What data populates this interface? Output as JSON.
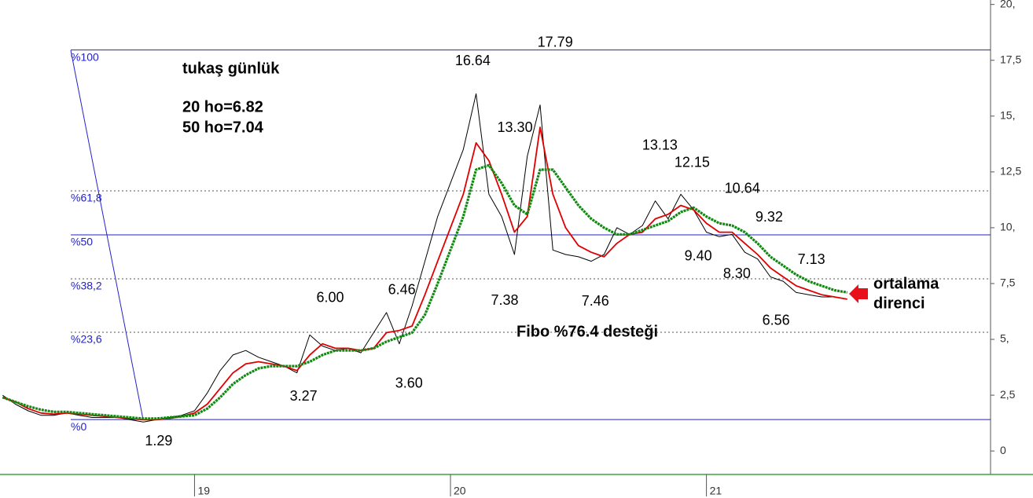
{
  "chart_data": {
    "type": "line",
    "title": "tukaş günlük",
    "subtitle": [
      "20 ho=6.82",
      "50 ho=7.04"
    ],
    "annotations": {
      "support": "Fibo %76.4 desteği",
      "resistance": [
        "ortalama",
        "direnci"
      ]
    },
    "x": [
      18.25,
      18.3,
      18.35,
      18.4,
      18.45,
      18.5,
      18.55,
      18.6,
      18.65,
      18.7,
      18.75,
      18.8,
      18.85,
      18.9,
      18.95,
      19.0,
      19.05,
      19.1,
      19.15,
      19.2,
      19.25,
      19.3,
      19.35,
      19.4,
      19.45,
      19.5,
      19.55,
      19.6,
      19.65,
      19.7,
      19.75,
      19.8,
      19.85,
      19.9,
      19.95,
      20.0,
      20.05,
      20.1,
      20.15,
      20.2,
      20.25,
      20.3,
      20.35,
      20.4,
      20.45,
      20.5,
      20.55,
      20.6,
      20.65,
      20.7,
      20.75,
      20.8,
      20.85,
      20.9,
      20.95,
      21.0,
      21.05,
      21.1,
      21.15,
      21.2,
      21.25,
      21.3,
      21.35,
      21.4,
      21.45,
      21.5,
      21.55
    ],
    "series": [
      {
        "color": "#000000",
        "values": [
          2.5,
          2.1,
          1.8,
          1.6,
          1.6,
          1.7,
          1.6,
          1.5,
          1.5,
          1.5,
          1.4,
          1.3,
          1.4,
          1.5,
          1.6,
          1.8,
          2.6,
          3.6,
          4.3,
          4.5,
          4.2,
          4.0,
          3.8,
          3.5,
          5.2,
          4.7,
          4.5,
          4.6,
          4.4,
          5.3,
          6.2,
          4.8,
          6.5,
          8.5,
          10.5,
          12.0,
          13.5,
          16.0,
          11.5,
          10.5,
          8.8,
          13.2,
          15.5,
          9.0,
          8.8,
          8.7,
          8.5,
          8.8,
          10.0,
          9.7,
          10.1,
          11.2,
          10.4,
          11.5,
          10.8,
          9.8,
          9.6,
          9.7,
          8.9,
          8.6,
          7.8,
          7.6,
          7.1,
          7.0,
          6.9,
          6.9,
          6.8
        ]
      },
      {
        "color": "#e00000",
        "values": [
          2.4,
          2.2,
          1.9,
          1.7,
          1.65,
          1.7,
          1.65,
          1.6,
          1.55,
          1.5,
          1.45,
          1.4,
          1.4,
          1.45,
          1.55,
          1.7,
          2.1,
          2.8,
          3.5,
          3.9,
          4.0,
          3.9,
          3.8,
          3.6,
          4.3,
          4.8,
          4.6,
          4.6,
          4.5,
          4.6,
          5.3,
          5.4,
          5.6,
          7.0,
          8.5,
          10.0,
          11.5,
          13.8,
          13.0,
          11.5,
          9.8,
          10.5,
          14.5,
          11.5,
          10.0,
          9.2,
          8.9,
          8.7,
          9.3,
          9.7,
          9.8,
          10.4,
          10.6,
          11.0,
          10.8,
          10.2,
          9.8,
          9.8,
          9.3,
          8.8,
          8.2,
          7.8,
          7.4,
          7.2,
          7.0,
          6.9,
          6.8
        ]
      },
      {
        "color": "#108a10",
        "values": [
          2.4,
          2.2,
          2.0,
          1.85,
          1.75,
          1.75,
          1.7,
          1.65,
          1.6,
          1.55,
          1.5,
          1.45,
          1.45,
          1.5,
          1.55,
          1.6,
          1.9,
          2.4,
          3.0,
          3.4,
          3.7,
          3.8,
          3.8,
          3.8,
          4.0,
          4.3,
          4.5,
          4.5,
          4.5,
          4.6,
          4.9,
          5.1,
          5.3,
          6.1,
          7.5,
          9.0,
          10.5,
          12.6,
          12.8,
          12.0,
          11.0,
          10.6,
          12.6,
          12.6,
          11.8,
          11.0,
          10.4,
          10.0,
          9.7,
          9.7,
          9.9,
          10.1,
          10.3,
          10.7,
          10.9,
          10.5,
          10.2,
          10.1,
          9.8,
          9.3,
          8.7,
          8.3,
          7.9,
          7.6,
          7.4,
          7.2,
          7.1
        ]
      }
    ],
    "price_labels": [
      {
        "value": 16.64,
        "label": "16.64",
        "x": 20.087
      },
      {
        "value": 17.79,
        "label": "17.79",
        "x": 20.409
      },
      {
        "value": 13.3,
        "label": "13.30",
        "x": 20.252
      },
      {
        "value": 13.13,
        "label": "13.13",
        "x": 20.818
      },
      {
        "value": 12.15,
        "label": "12.15",
        "x": 20.944
      },
      {
        "value": 10.64,
        "label": "10.64",
        "x": 21.14
      },
      {
        "value": 9.32,
        "label": "9.32",
        "x": 21.245
      },
      {
        "value": 9.4,
        "label": "9.40",
        "x": 20.968
      },
      {
        "value": 8.3,
        "label": "8.30",
        "x": 21.119
      },
      {
        "value": 7.13,
        "label": "7.13",
        "x": 21.41
      },
      {
        "value": 6.56,
        "label": "6.56",
        "x": 21.272
      },
      {
        "value": 7.38,
        "label": "7.38",
        "x": 20.212
      },
      {
        "value": 7.46,
        "label": "7.46",
        "x": 20.566
      },
      {
        "value": 6,
        "label": "6.00",
        "x": 19.53
      },
      {
        "value": 6.46,
        "label": "6.46",
        "x": 19.81
      },
      {
        "value": 3.27,
        "label": "3.27",
        "x": 19.426
      },
      {
        "value": 3.6,
        "label": "3.60",
        "x": 19.838
      },
      {
        "value": 1.29,
        "label": "1.29",
        "x": 18.86
      }
    ],
    "fibonacci": [
      {
        "value": 17.96,
        "label": "%100"
      },
      {
        "value": 11.65,
        "label": "%61,8"
      },
      {
        "value": 9.68,
        "label": "%50"
      },
      {
        "value": 7.71,
        "label": "%38,2"
      },
      {
        "value": 5.32,
        "label": "%23,6"
      },
      {
        "value": 1.41,
        "label": "%0"
      }
    ],
    "xlim": [
      18.24,
      22.11
    ],
    "xticks": [
      19,
      20,
      21
    ],
    "ylim": [
      -1.05,
      20.2
    ],
    "yticks": [
      {
        "value": 0,
        "label": "0"
      },
      {
        "value": 2.5,
        "label": "2,5"
      },
      {
        "value": 5,
        "label": "5,"
      },
      {
        "value": 7.5,
        "label": "7,5"
      },
      {
        "value": 10,
        "label": "10,"
      },
      {
        "value": 12.5,
        "label": "12,5"
      },
      {
        "value": 15,
        "label": "15,"
      },
      {
        "value": 17.5,
        "label": "17,5"
      },
      {
        "value": 20,
        "label": "20,"
      }
    ]
  }
}
